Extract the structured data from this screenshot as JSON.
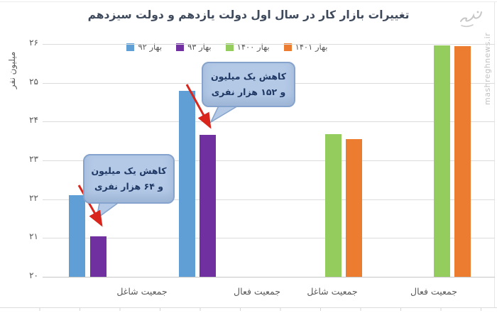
{
  "title": "تغییرات بازار کار در سال اول دولت یازدهم و دولت سیزدهم",
  "watermark": {
    "site": "mashreghnews.ir",
    "logo": "mashregh-logo"
  },
  "legend": [
    {
      "key": "bahar-92",
      "label": "بهار ۹۲",
      "color": "#5f9fd6"
    },
    {
      "key": "bahar-93",
      "label": "بهار ۹۳",
      "color": "#7030a0"
    },
    {
      "key": "bahar-1400",
      "label": "بهار ۱۴۰۰",
      "color": "#95cc5e"
    },
    {
      "key": "bahar-1401",
      "label": "بهار ۱۴۰۱",
      "color": "#ec7c30"
    }
  ],
  "y_axis": {
    "title": "میلیون نفر",
    "ticks": [
      {
        "label": "۲۶",
        "value": 26
      },
      {
        "label": "۲۵",
        "value": 25
      },
      {
        "label": "۲۴",
        "value": 24
      },
      {
        "label": "۲۳",
        "value": 23
      },
      {
        "label": "۲۲",
        "value": 22
      },
      {
        "label": "۲۱",
        "value": 21
      },
      {
        "label": "۲۰",
        "value": 20
      }
    ]
  },
  "annotations": [
    {
      "id": "decrease-active",
      "line1": "کاهش یک میلیون",
      "line2": "و ۱۵۲ هزار نفری"
    },
    {
      "id": "decrease-employed",
      "line1": "کاهش یک میلیون",
      "line2": "و ۶۴ هزار نفری"
    }
  ],
  "annotation_colors": {
    "box_fill": "#b3c9e6",
    "box_border": "#85a3cc",
    "text": "#1f3864",
    "arrow": "#d9261c"
  },
  "chart_data": {
    "type": "bar",
    "title": "تغییرات بازار کار در سال اول دولت یازدهم و دولت سیزدهم",
    "ylabel": "میلیون نفر",
    "xlabel": "",
    "ylim": [
      20,
      26
    ],
    "grid": true,
    "legend_position": "top-center",
    "categories": [
      "جمعیت شاغل",
      "جمعیت فعال",
      "جمعیت شاغل",
      "جمعیت فعال"
    ],
    "series": [
      {
        "name": "بهار ۹۲",
        "key": "bahar-92",
        "values": [
          22.1,
          24.8,
          null,
          null
        ]
      },
      {
        "name": "بهار ۹۳",
        "key": "bahar-93",
        "values": [
          21.05,
          23.65,
          null,
          null
        ]
      },
      {
        "name": "بهار ۱۴۰۰",
        "key": "bahar-1400",
        "values": [
          null,
          null,
          23.67,
          25.97
        ]
      },
      {
        "name": "بهار ۱۴۰۱",
        "key": "bahar-1401",
        "values": [
          null,
          null,
          23.55,
          25.95
        ]
      }
    ],
    "notes": [
      "decrease of 1,152,000 between بهار ۹۲ and بهار ۹۳ active population",
      "decrease of 1,064,000 between بهار ۹۲ and بهار ۹۳ employed population"
    ]
  }
}
